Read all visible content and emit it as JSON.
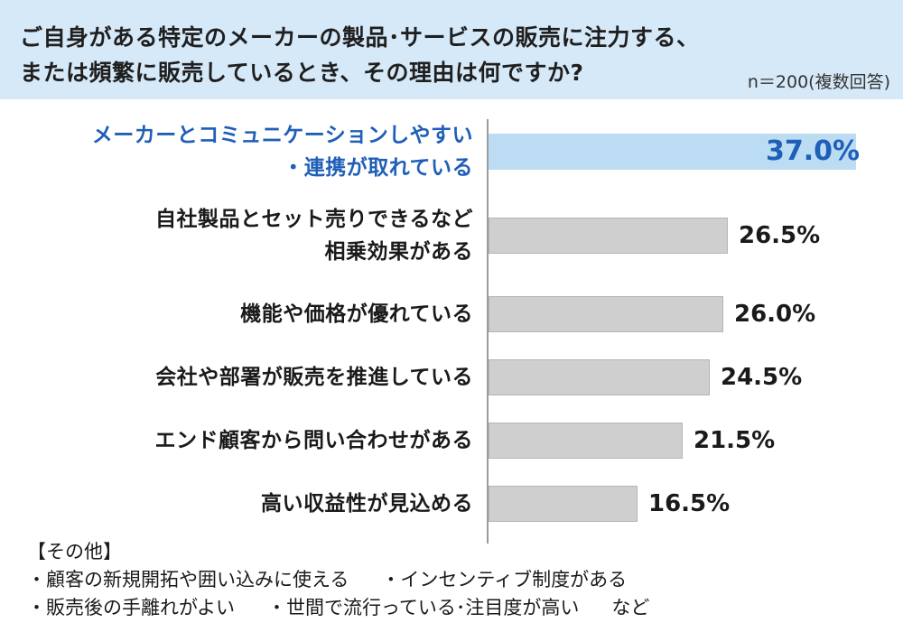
{
  "header": {
    "title_line1": "ご自身がある特定のメーカーの製品･サービスの販売に注力する、",
    "title_line2": "または頻繁に販売しているとき、その理由は何ですか?",
    "sample_note": "n＝200(複数回答)"
  },
  "colors": {
    "header_bg": "#d6e9f8",
    "highlight_bar": "#bcdcf4",
    "highlight_text": "#1f5fb8",
    "bar": "#cfcfcf"
  },
  "chart_data": {
    "type": "bar",
    "orientation": "horizontal",
    "title": "",
    "xlabel": "",
    "ylabel": "",
    "xlim": [
      0,
      40
    ],
    "grid": false,
    "unit": "%",
    "categories": [
      [
        "メーカーとコミュニケーションしやすい",
        "・連携が取れている"
      ],
      [
        "自社製品とセット売りできるなど",
        "相乗効果がある"
      ],
      [
        "機能や価格が優れている"
      ],
      [
        "会社や部署が販売を推進している"
      ],
      [
        "エンド顧客から問い合わせがある"
      ],
      [
        "高い収益性が見込める"
      ]
    ],
    "values": [
      37.0,
      26.5,
      26.0,
      24.5,
      21.5,
      16.5
    ],
    "value_labels": [
      "37.0%",
      "26.5%",
      "26.0%",
      "24.5%",
      "21.5%",
      "16.5%"
    ],
    "highlighted_index": 0
  },
  "others": {
    "heading": "【その他】",
    "row1": [
      "・顧客の新規開拓や囲い込みに使える",
      "・インセンティブ制度がある"
    ],
    "row2": [
      "・販売後の手離れがよい",
      "・世間で流行っている･注目度が高い",
      "など"
    ]
  }
}
